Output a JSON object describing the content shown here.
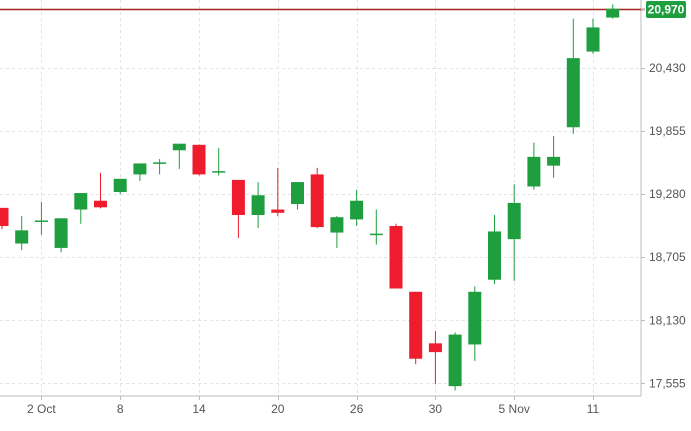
{
  "colors": {
    "up": "#1e9e3e",
    "down": "#ee1c2d",
    "wick_up": "#1e9e3e",
    "wick_down": "#ee1c2d",
    "grid": "#e3e3e3",
    "axis_text": "#555555",
    "price_line": "#a3261e",
    "price_tag": "#1e9e3e",
    "background": "#ffffff"
  },
  "chart_data": {
    "type": "candlestick",
    "title": "",
    "xlabel": "",
    "ylabel": "",
    "grid": true,
    "y_axis_position": "right",
    "ylim": [
      17440,
      21050
    ],
    "yticks": [
      "17,555",
      "18,130",
      "18,705",
      "19,280",
      "19,855",
      "20,430",
      "20,970"
    ],
    "ytick_values": [
      17555,
      18130,
      18705,
      19280,
      19855,
      20430,
      20970
    ],
    "xticks": [
      {
        "label": "2 Oct",
        "index": 2
      },
      {
        "label": "8",
        "index": 6
      },
      {
        "label": "14",
        "index": 10
      },
      {
        "label": "20",
        "index": 14
      },
      {
        "label": "26",
        "index": 18
      },
      {
        "label": "30",
        "index": 22
      },
      {
        "label": "5 Nov",
        "index": 26
      },
      {
        "label": "11",
        "index": 30
      }
    ],
    "current_price": "20,970",
    "current_price_value": 20970,
    "candles": [
      {
        "o": 19155,
        "h": 19155,
        "l": 18960,
        "c": 18990
      },
      {
        "o": 18830,
        "h": 19080,
        "l": 18770,
        "c": 18950
      },
      {
        "o": 19030,
        "h": 19210,
        "l": 18910,
        "c": 19040
      },
      {
        "o": 18790,
        "h": 19060,
        "l": 18750,
        "c": 19060
      },
      {
        "o": 19140,
        "h": 19290,
        "l": 19010,
        "c": 19290
      },
      {
        "o": 19220,
        "h": 19475,
        "l": 19150,
        "c": 19160
      },
      {
        "o": 19300,
        "h": 19420,
        "l": 19280,
        "c": 19420
      },
      {
        "o": 19460,
        "h": 19560,
        "l": 19400,
        "c": 19560
      },
      {
        "o": 19560,
        "h": 19600,
        "l": 19460,
        "c": 19570
      },
      {
        "o": 19680,
        "h": 19730,
        "l": 19510,
        "c": 19740
      },
      {
        "o": 19730,
        "h": 19730,
        "l": 19450,
        "c": 19460
      },
      {
        "o": 19480,
        "h": 19700,
        "l": 19450,
        "c": 19490
      },
      {
        "o": 19410,
        "h": 19410,
        "l": 18880,
        "c": 19090
      },
      {
        "o": 19090,
        "h": 19390,
        "l": 18970,
        "c": 19270
      },
      {
        "o": 19140,
        "h": 19520,
        "l": 19080,
        "c": 19110
      },
      {
        "o": 19190,
        "h": 19390,
        "l": 19140,
        "c": 19390
      },
      {
        "o": 19460,
        "h": 19520,
        "l": 18970,
        "c": 18980
      },
      {
        "o": 18930,
        "h": 19080,
        "l": 18790,
        "c": 19070
      },
      {
        "o": 19050,
        "h": 19320,
        "l": 18990,
        "c": 19220
      },
      {
        "o": 18910,
        "h": 19140,
        "l": 18820,
        "c": 18920
      },
      {
        "o": 18990,
        "h": 19010,
        "l": 18420,
        "c": 18420
      },
      {
        "o": 18390,
        "h": 18390,
        "l": 17730,
        "c": 17780
      },
      {
        "o": 17920,
        "h": 18030,
        "l": 17550,
        "c": 17840
      },
      {
        "o": 17530,
        "h": 18020,
        "l": 17490,
        "c": 18000
      },
      {
        "o": 17910,
        "h": 18440,
        "l": 17760,
        "c": 18390
      },
      {
        "o": 18500,
        "h": 19090,
        "l": 18460,
        "c": 18940
      },
      {
        "o": 18870,
        "h": 19370,
        "l": 18490,
        "c": 19200
      },
      {
        "o": 19350,
        "h": 19750,
        "l": 19320,
        "c": 19620
      },
      {
        "o": 19540,
        "h": 19810,
        "l": 19430,
        "c": 19620
      },
      {
        "o": 19890,
        "h": 20880,
        "l": 19830,
        "c": 20520
      },
      {
        "o": 20580,
        "h": 20880,
        "l": 20560,
        "c": 20800
      },
      {
        "o": 20890,
        "h": 21010,
        "l": 20880,
        "c": 20970
      }
    ]
  }
}
